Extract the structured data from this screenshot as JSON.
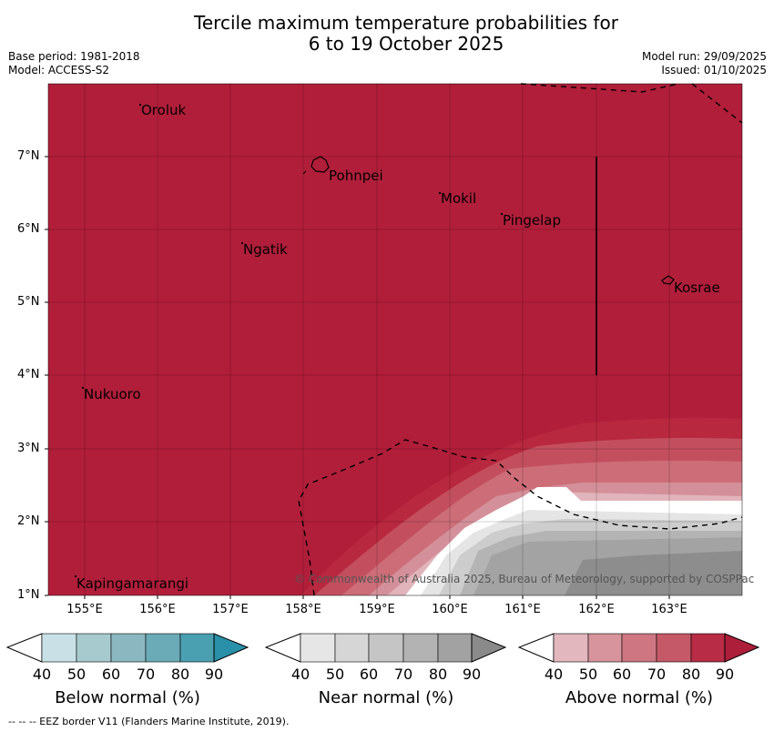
{
  "title": {
    "line1": "Tercile maximum temperature probabilities for",
    "line2": "6 to 19 October 2025"
  },
  "meta": {
    "base_period": "Base period: 1981-2018",
    "model": "Model: ACCESS-S2",
    "model_run": "Model run: 29/09/2025",
    "issued": "Issued: 01/10/2025"
  },
  "axes": {
    "lat_labels": [
      "7°N",
      "6°N",
      "5°N",
      "4°N",
      "3°N",
      "2°N",
      "1°N"
    ],
    "lon_labels": [
      "155°E",
      "156°E",
      "157°E",
      "158°E",
      "159°E",
      "160°E",
      "161°E",
      "162°E",
      "163°E"
    ]
  },
  "places": [
    "Oroluk",
    "Pohnpei",
    "Mokil",
    "Pingelap",
    "Ngatik",
    "Kosrae",
    "Nukuoro",
    "Kapingamarangi"
  ],
  "credit": "© Commonwealth of Australia 2025, Bureau of Meteorology, supported by COSPPac",
  "colorbars": [
    {
      "title": "Below normal (%)",
      "ticks": [
        "40",
        "50",
        "60",
        "70",
        "80",
        "90"
      ],
      "colors": [
        "#c9e1e6",
        "#a7cace",
        "#8bb8c0",
        "#6aabb7",
        "#4a9fb1",
        "#2a8fa8"
      ]
    },
    {
      "title": "Near normal (%)",
      "ticks": [
        "40",
        "50",
        "60",
        "70",
        "80",
        "90"
      ],
      "colors": [
        "#e6e6e6",
        "#d6d6d6",
        "#c5c5c5",
        "#b3b3b3",
        "#a2a2a2",
        "#8a8a8a"
      ]
    },
    {
      "title": "Above normal (%)",
      "ticks": [
        "40",
        "50",
        "60",
        "70",
        "80",
        "90"
      ],
      "colors": [
        "#e3b7be",
        "#d7949c",
        "#ce7682",
        "#c55967",
        "#b82c45",
        "#ad1e3a"
      ]
    }
  ],
  "footer": "--  --  -- EEZ border V11 (Flanders Marine Institute, 2019)."
}
